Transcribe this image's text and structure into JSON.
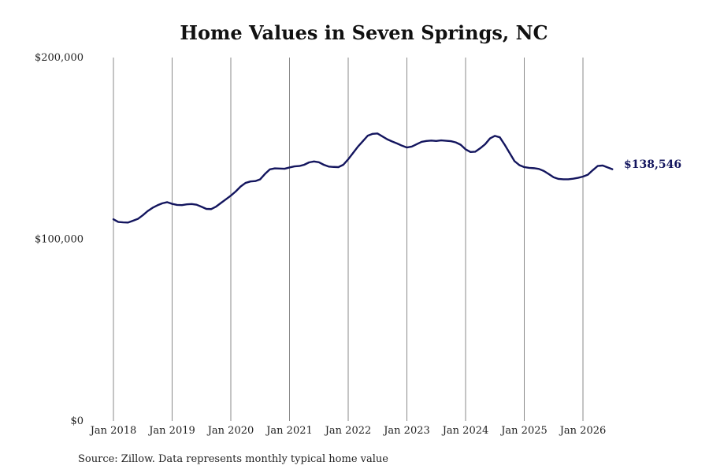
{
  "chart_data": {
    "type": "line",
    "title": "Home Values in Seven Springs, NC",
    "xlabel": "",
    "ylabel": "",
    "ylim": [
      0,
      200000
    ],
    "grid": "vertical",
    "x_tick_labels": [
      "Jan 2018",
      "Jan 2019",
      "Jan 2020",
      "Jan 2021",
      "Jan 2022",
      "Jan 2023",
      "Jan 2024",
      "Jan 2025",
      "Jan 2026"
    ],
    "y_tick_labels": [
      "$0",
      "$100,000",
      "$200,000"
    ],
    "end_label": "$138,546",
    "source_note": "Source: Zillow. Data represents monthly typical home value",
    "line_color": "#13155e",
    "series": [
      {
        "x": [
          "2018-01",
          "2018-02",
          "2018-03",
          "2018-04",
          "2018-05",
          "2018-06",
          "2018-07",
          "2018-08",
          "2018-09",
          "2018-10",
          "2018-11",
          "2018-12",
          "2019-01",
          "2019-02",
          "2019-03",
          "2019-04",
          "2019-05",
          "2019-06",
          "2019-07",
          "2019-08",
          "2019-09",
          "2019-10",
          "2019-11",
          "2019-12",
          "2020-01",
          "2020-02",
          "2020-03",
          "2020-04",
          "2020-05",
          "2020-06",
          "2020-07",
          "2020-08",
          "2020-09",
          "2020-10",
          "2020-11",
          "2020-12",
          "2021-01",
          "2021-02",
          "2021-03",
          "2021-04",
          "2021-05",
          "2021-06",
          "2021-07",
          "2021-08",
          "2021-09",
          "2021-10",
          "2021-11",
          "2021-12",
          "2022-01",
          "2022-02",
          "2022-03",
          "2022-04",
          "2022-05",
          "2022-06",
          "2022-07",
          "2022-08",
          "2022-09",
          "2022-10",
          "2022-11",
          "2022-12",
          "2023-01",
          "2023-02",
          "2023-03",
          "2023-04",
          "2023-05",
          "2023-06",
          "2023-07",
          "2023-08",
          "2023-09",
          "2023-10",
          "2023-11",
          "2023-12",
          "2024-01",
          "2024-02",
          "2024-03",
          "2024-04",
          "2024-05",
          "2024-06",
          "2024-07",
          "2024-08",
          "2024-09",
          "2024-10",
          "2024-11",
          "2024-12",
          "2025-01",
          "2025-02",
          "2025-03",
          "2025-04",
          "2025-05",
          "2025-06",
          "2025-07",
          "2025-08",
          "2025-09",
          "2025-10",
          "2025-11",
          "2025-12",
          "2026-01",
          "2026-02",
          "2026-03",
          "2026-04",
          "2026-05",
          "2026-06",
          "2026-07"
        ],
        "values": [
          111000,
          109500,
          109300,
          109200,
          110200,
          111200,
          113200,
          115500,
          117300,
          118700,
          119800,
          120400,
          119500,
          118900,
          118800,
          119200,
          119400,
          119000,
          117900,
          116700,
          116600,
          118000,
          120000,
          122000,
          124000,
          126300,
          129000,
          131000,
          131800,
          132000,
          133000,
          136000,
          138500,
          139000,
          138900,
          138800,
          139500,
          140100,
          140300,
          141000,
          142300,
          142800,
          142400,
          141000,
          140000,
          139800,
          139700,
          141000,
          144000,
          147500,
          151000,
          154000,
          157000,
          158000,
          158200,
          156600,
          155000,
          153800,
          152700,
          151500,
          150500,
          151000,
          152300,
          153600,
          154100,
          154300,
          154100,
          154400,
          154200,
          154000,
          153300,
          152000,
          149500,
          148000,
          148200,
          150100,
          152300,
          155500,
          156900,
          156100,
          152000,
          147500,
          143000,
          140800,
          139700,
          139300,
          139100,
          138700,
          137600,
          135900,
          134100,
          133200,
          133000,
          133000,
          133300,
          133800,
          134500,
          135500,
          138000,
          140300,
          140600,
          139600,
          138546
        ]
      }
    ]
  }
}
